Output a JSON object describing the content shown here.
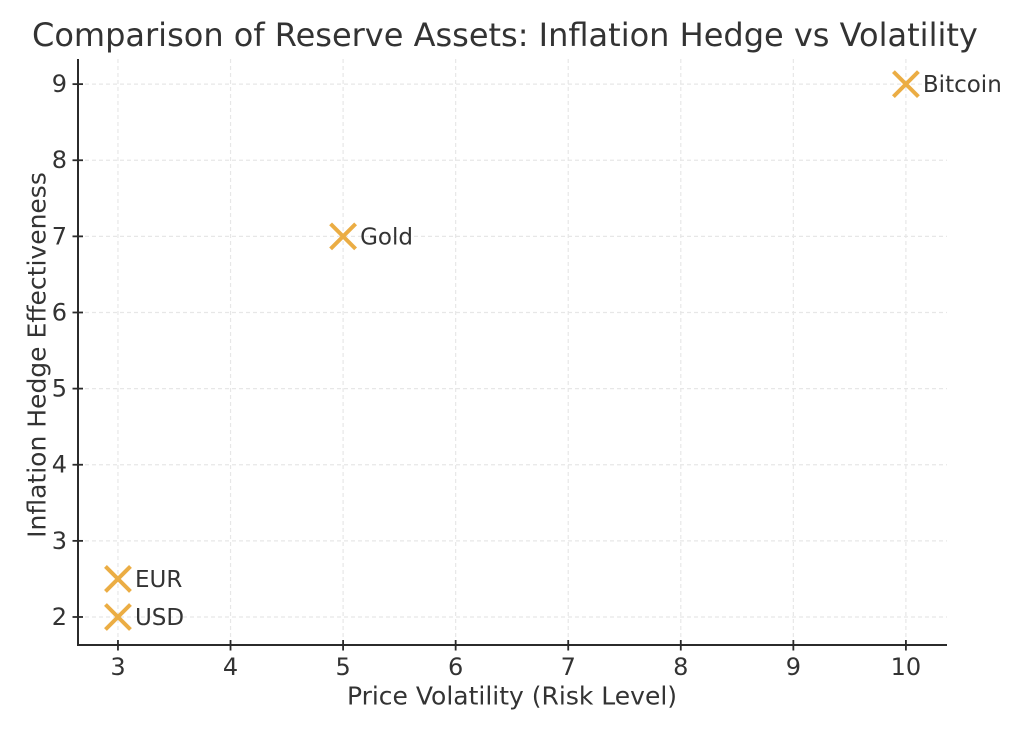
{
  "chart_data": {
    "type": "scatter",
    "title": "Comparison of Reserve Assets: Inflation Hedge vs Volatility",
    "xlabel": "Price Volatility (Risk Level)",
    "ylabel": "Inflation Hedge Effectiveness",
    "xlim": [
      2.645,
      10.365
    ],
    "ylim": [
      1.632,
      9.33
    ],
    "xticks": [
      3,
      4,
      5,
      6,
      7,
      8,
      9,
      10
    ],
    "yticks": [
      2,
      3,
      4,
      5,
      6,
      7,
      8,
      9
    ],
    "grid": true,
    "grid_style": "dashed",
    "legend": "none",
    "marker": "x",
    "points": [
      {
        "label": "USD",
        "x": 3,
        "y": 2
      },
      {
        "label": "EUR",
        "x": 3,
        "y": 2.5
      },
      {
        "label": "Gold",
        "x": 5,
        "y": 7
      },
      {
        "label": "Bitcoin",
        "x": 10,
        "y": 9
      }
    ]
  },
  "colors": {
    "marker": "#EBAD44",
    "text": "#333333",
    "spine": "#2B2B2B",
    "grid": "#E7E7E7",
    "background": "#FFFFFF"
  }
}
